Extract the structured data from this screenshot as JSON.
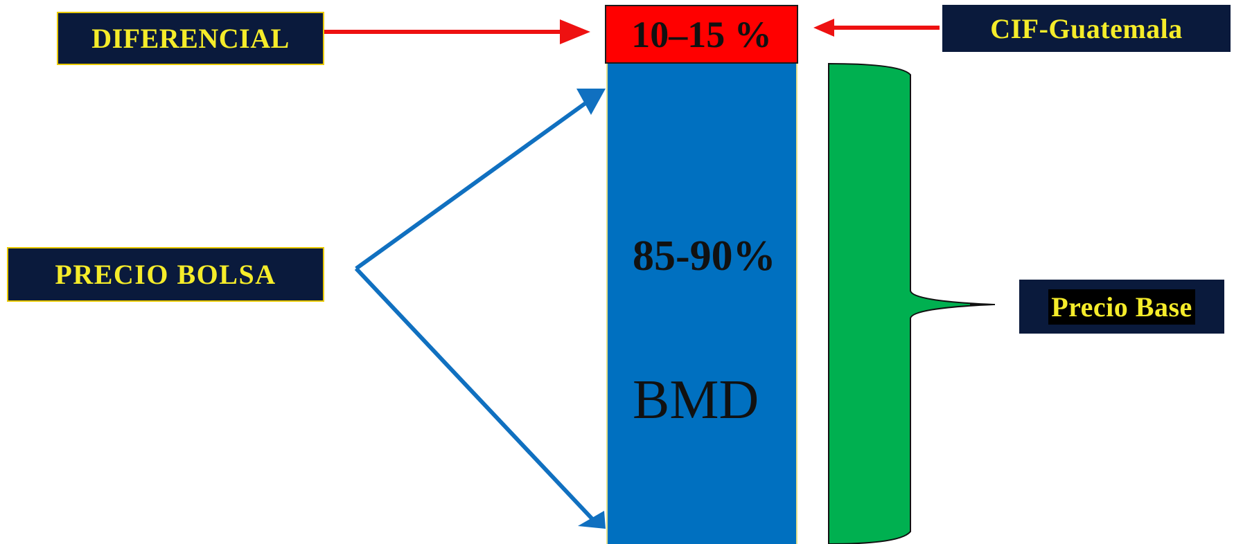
{
  "labels": {
    "diferencial": "DIFERENCIAL",
    "precio_bolsa": "PRECIO  BOLSA",
    "cif_guatemala": "CIF-Guatemala",
    "precio_base": "Precio Base"
  },
  "blocks": {
    "differential_percent": "10–15  %",
    "bmd_percent": "85-90%",
    "bmd_name": "BMD"
  },
  "colors": {
    "label_bg": "#0a1a3c",
    "label_text": "#f5ec2a",
    "differential_block": "#ff0000",
    "bmd_block": "#0070c0",
    "brace": "#00b050",
    "red_arrow": "#ee1111",
    "blue_arrow": "#1070c0"
  }
}
